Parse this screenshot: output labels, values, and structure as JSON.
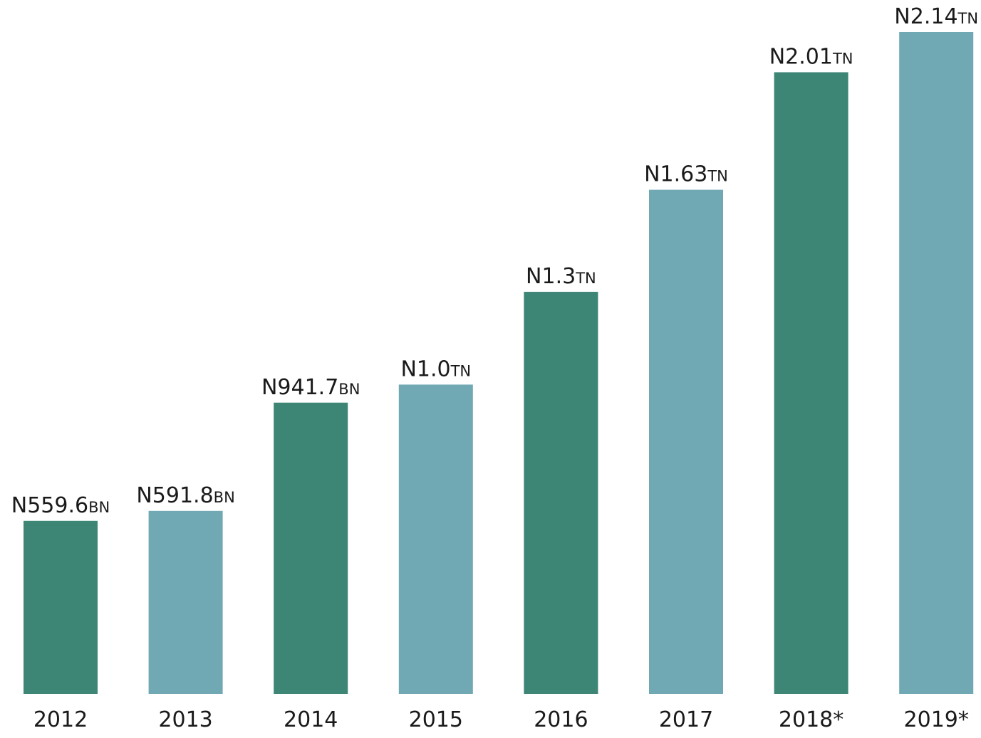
{
  "chart_data": {
    "type": "bar",
    "categories": [
      "2012",
      "2013",
      "2014",
      "2015",
      "2016",
      "2017",
      "2018*",
      "2019*"
    ],
    "values": [
      559600000000,
      591800000000,
      941700000000,
      1000000000000,
      1300000000000,
      1630000000000,
      2010000000000,
      2140000000000
    ],
    "value_labels": [
      "N559.6bn",
      "N591.8bn",
      "N941.7bn",
      "N1.0tn",
      "N1.3tn",
      "N1.63tn",
      "N2.01tn",
      "N2.14tn"
    ],
    "colors": [
      "#3d8575",
      "#70a8b4",
      "#3d8575",
      "#70a8b4",
      "#3d8575",
      "#70a8b4",
      "#3d8575",
      "#70a8b4"
    ]
  }
}
